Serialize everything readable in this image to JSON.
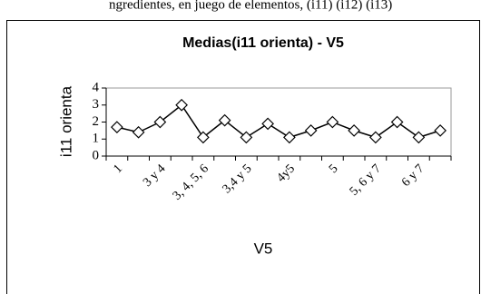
{
  "header_text": "ngredientes, en juego de elementos, (i11) (i12) (i13)",
  "chart_data": {
    "type": "line",
    "title": "Medias(i11 orienta) - V5",
    "x_label": "V5",
    "y_label": "i11 orienta",
    "categories": [
      "1",
      null,
      "3 y 4",
      null,
      "3, 4, 5, 6",
      null,
      "3,4 y 5",
      null,
      "4y5",
      null,
      "5",
      null,
      "5, 6 y 7",
      null,
      "6 y 7",
      null
    ],
    "values": [
      1.7,
      1.4,
      2.0,
      3.0,
      1.1,
      2.1,
      1.1,
      1.9,
      1.1,
      1.5,
      2.0,
      1.5,
      1.1,
      2.0,
      1.1,
      1.5
    ],
    "color": "#000000",
    "ylim": [
      0,
      4
    ],
    "yticks": [
      0,
      1,
      2,
      3,
      4
    ]
  }
}
